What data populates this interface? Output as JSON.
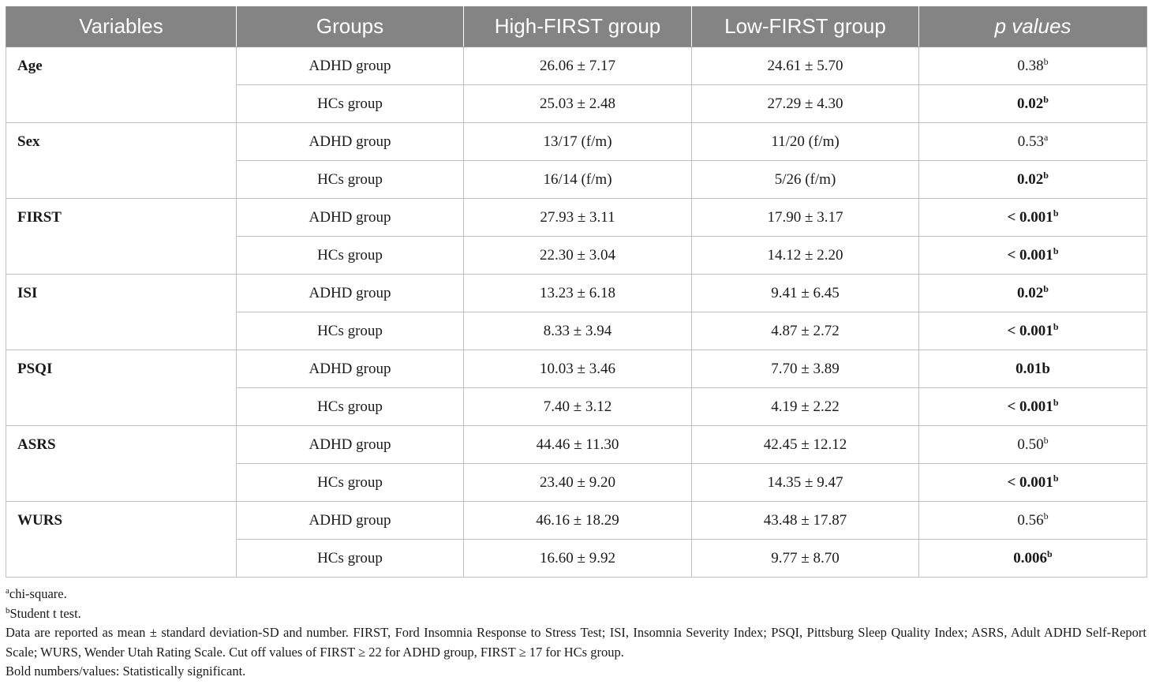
{
  "table": {
    "headers": [
      "Variables",
      "Groups",
      "High-FIRST group",
      "Low-FIRST group",
      "p values"
    ],
    "rows": [
      {
        "variable": "Age",
        "entries": [
          {
            "group": "ADHD group",
            "high": "26.06 ± 7.17",
            "low": "24.61 ± 5.70",
            "p": "0.38",
            "sup": "b",
            "bold": false
          },
          {
            "group": "HCs group",
            "high": "25.03 ± 2.48",
            "low": "27.29 ± 4.30",
            "p": "0.02",
            "sup": "b",
            "bold": true
          }
        ]
      },
      {
        "variable": "Sex",
        "entries": [
          {
            "group": "ADHD group",
            "high": "13/17 (f/m)",
            "low": "11/20 (f/m)",
            "p": "0.53",
            "sup": "a",
            "bold": false
          },
          {
            "group": "HCs group",
            "high": "16/14 (f/m)",
            "low": "5/26 (f/m)",
            "p": "0.02",
            "sup": "b",
            "bold": true
          }
        ]
      },
      {
        "variable": "FIRST",
        "entries": [
          {
            "group": "ADHD group",
            "high": "27.93 ± 3.11",
            "low": "17.90 ± 3.17",
            "p": "< 0.001",
            "sup": "b",
            "bold": true
          },
          {
            "group": "HCs group",
            "high": "22.30 ± 3.04",
            "low": "14.12 ± 2.20",
            "p": "< 0.001",
            "sup": "b",
            "bold": true
          }
        ]
      },
      {
        "variable": "ISI",
        "entries": [
          {
            "group": "ADHD group",
            "high": "13.23 ± 6.18",
            "low": "9.41 ± 6.45",
            "p": "0.02",
            "sup": "b",
            "bold": true
          },
          {
            "group": "HCs group",
            "high": "8.33 ± 3.94",
            "low": "4.87 ± 2.72",
            "p": "< 0.001",
            "sup": "b",
            "bold": true
          }
        ]
      },
      {
        "variable": "PSQI",
        "entries": [
          {
            "group": "ADHD group",
            "high": "10.03 ± 3.46",
            "low": "7.70 ± 3.89",
            "p": "0.01b",
            "sup": "",
            "bold": true
          },
          {
            "group": "HCs group",
            "high": "7.40 ± 3.12",
            "low": "4.19 ± 2.22",
            "p": "< 0.001",
            "sup": "b",
            "bold": true
          }
        ]
      },
      {
        "variable": "ASRS",
        "entries": [
          {
            "group": "ADHD group",
            "high": "44.46 ± 11.30",
            "low": "42.45 ± 12.12",
            "p": "0.50",
            "sup": "b",
            "bold": false
          },
          {
            "group": "HCs group",
            "high": "23.40 ± 9.20",
            "low": "14.35 ± 9.47",
            "p": "< 0.001",
            "sup": "b",
            "bold": true
          }
        ]
      },
      {
        "variable": "WURS",
        "entries": [
          {
            "group": "ADHD group",
            "high": "46.16 ± 18.29",
            "low": "43.48 ± 17.87",
            "p": "0.56",
            "sup": "b",
            "bold": false
          },
          {
            "group": "HCs group",
            "high": "16.60 ± 9.92",
            "low": "9.77 ± 8.70",
            "p": "0.006",
            "sup": "b",
            "bold": true
          }
        ]
      }
    ]
  },
  "footnotes": {
    "a_mark": "a",
    "a_text": "chi-square.",
    "b_mark": "b",
    "b_text": "Student t test.",
    "data_note": "Data are reported as mean ± standard deviation-SD and number. FIRST, Ford Insomnia Response to Stress Test; ISI, Insomnia Severity Index; PSQI, Pittsburg Sleep Quality Index; ASRS, Adult ADHD Self-Report Scale; WURS, Wender Utah Rating Scale. Cut off values of FIRST ≥ 22 for ADHD group, FIRST ≥ 17 for HCs group.",
    "bold_note": "Bold numbers/values: Statistically significant."
  },
  "colors": {
    "header_bg": "#848484",
    "header_text": "#ffffff",
    "grid": "#c2c2c2"
  }
}
